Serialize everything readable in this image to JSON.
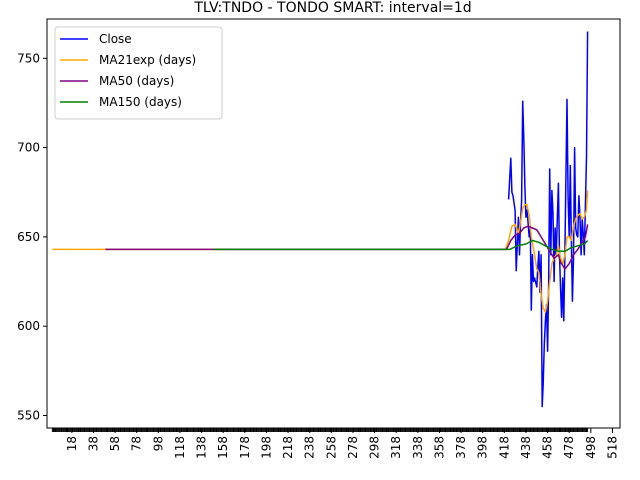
{
  "chart_data": {
    "type": "line",
    "title": "TLV:TNDO - TONDO SMART: interval=1d",
    "xlabel": "",
    "ylabel": "",
    "xlim": [
      -5,
      525
    ],
    "ylim": [
      543,
      772
    ],
    "x_ticks": [
      18,
      38,
      58,
      78,
      98,
      118,
      138,
      158,
      178,
      198,
      218,
      238,
      258,
      278,
      298,
      318,
      338,
      358,
      378,
      398,
      418,
      438,
      458,
      478,
      498,
      518
    ],
    "y_ticks": [
      550,
      600,
      650,
      700,
      750
    ],
    "grid": false,
    "legend_position": "upper-left",
    "series": [
      {
        "name": "Close",
        "color": "#0000ff",
        "points": [
          [
            422,
            671
          ],
          [
            424,
            694
          ],
          [
            425,
            675
          ],
          [
            426,
            673
          ],
          [
            428,
            665
          ],
          [
            429,
            631
          ],
          [
            431,
            661
          ],
          [
            432,
            640
          ],
          [
            433,
            658
          ],
          [
            434,
            670
          ],
          [
            435,
            726
          ],
          [
            436,
            705
          ],
          [
            437,
            678
          ],
          [
            438,
            661
          ],
          [
            439,
            665
          ],
          [
            441,
            650
          ],
          [
            442,
            655
          ],
          [
            443,
            609
          ],
          [
            444,
            640
          ],
          [
            445,
            625
          ],
          [
            446,
            627
          ],
          [
            448,
            622
          ],
          [
            449,
            633
          ],
          [
            450,
            642
          ],
          [
            451,
            619
          ],
          [
            452,
            640
          ],
          [
            453,
            555
          ],
          [
            454,
            568
          ],
          [
            455,
            590
          ],
          [
            456,
            603
          ],
          [
            457,
            612
          ],
          [
            458,
            586
          ],
          [
            459,
            622
          ],
          [
            460,
            688
          ],
          [
            461,
            640
          ],
          [
            462,
            676
          ],
          [
            463,
            663
          ],
          [
            464,
            625
          ],
          [
            465,
            655
          ],
          [
            466,
            640
          ],
          [
            467,
            660
          ],
          [
            468,
            680
          ],
          [
            469,
            640
          ],
          [
            470,
            622
          ],
          [
            471,
            605
          ],
          [
            472,
            627
          ],
          [
            473,
            603
          ],
          [
            474,
            642
          ],
          [
            476,
            727
          ],
          [
            477,
            672
          ],
          [
            478,
            650
          ],
          [
            479,
            690
          ],
          [
            480,
            651
          ],
          [
            481,
            614
          ],
          [
            482,
            638
          ],
          [
            483,
            700
          ],
          [
            484,
            655
          ],
          [
            485,
            651
          ],
          [
            486,
            650
          ],
          [
            487,
            673
          ],
          [
            488,
            661
          ],
          [
            489,
            640
          ],
          [
            490,
            660
          ],
          [
            491,
            652
          ],
          [
            492,
            640
          ],
          [
            494,
            695
          ],
          [
            495,
            765
          ]
        ]
      },
      {
        "name": "MA21exp (days)",
        "color": "#ffa500",
        "points": [
          [
            0,
            643
          ],
          [
            419,
            643
          ],
          [
            422,
            648
          ],
          [
            425,
            656
          ],
          [
            428,
            657
          ],
          [
            431,
            652
          ],
          [
            433,
            658
          ],
          [
            435,
            666
          ],
          [
            437,
            668
          ],
          [
            439,
            668
          ],
          [
            441,
            662
          ],
          [
            443,
            650
          ],
          [
            446,
            640
          ],
          [
            448,
            632
          ],
          [
            450,
            630
          ],
          [
            452,
            618
          ],
          [
            454,
            610
          ],
          [
            456,
            608
          ],
          [
            458,
            614
          ],
          [
            460,
            625
          ],
          [
            462,
            635
          ],
          [
            464,
            638
          ],
          [
            466,
            640
          ],
          [
            468,
            645
          ],
          [
            470,
            638
          ],
          [
            472,
            635
          ],
          [
            474,
            640
          ],
          [
            476,
            650
          ],
          [
            478,
            650
          ],
          [
            480,
            648
          ],
          [
            482,
            656
          ],
          [
            484,
            660
          ],
          [
            486,
            662
          ],
          [
            488,
            663
          ],
          [
            490,
            660
          ],
          [
            492,
            661
          ],
          [
            494,
            665
          ],
          [
            495,
            676
          ]
        ]
      },
      {
        "name": "MA50 (days)",
        "color": "#800080",
        "points": [
          [
            49,
            643
          ],
          [
            420,
            643
          ],
          [
            424,
            648
          ],
          [
            428,
            651
          ],
          [
            432,
            652
          ],
          [
            436,
            655
          ],
          [
            440,
            656
          ],
          [
            444,
            655
          ],
          [
            448,
            654
          ],
          [
            452,
            650
          ],
          [
            456,
            646
          ],
          [
            460,
            642
          ],
          [
            464,
            638
          ],
          [
            468,
            640
          ],
          [
            470,
            636
          ],
          [
            474,
            632
          ],
          [
            478,
            635
          ],
          [
            482,
            640
          ],
          [
            486,
            643
          ],
          [
            490,
            647
          ],
          [
            493,
            650
          ],
          [
            495,
            657
          ]
        ]
      },
      {
        "name": "MA150 (days)",
        "color": "#008000",
        "points": [
          [
            149,
            643
          ],
          [
            423,
            643
          ],
          [
            430,
            645
          ],
          [
            438,
            646
          ],
          [
            444,
            648
          ],
          [
            450,
            647
          ],
          [
            456,
            645
          ],
          [
            462,
            643
          ],
          [
            468,
            642
          ],
          [
            474,
            642
          ],
          [
            480,
            644
          ],
          [
            486,
            645
          ],
          [
            492,
            646
          ],
          [
            495,
            648
          ]
        ]
      }
    ]
  }
}
